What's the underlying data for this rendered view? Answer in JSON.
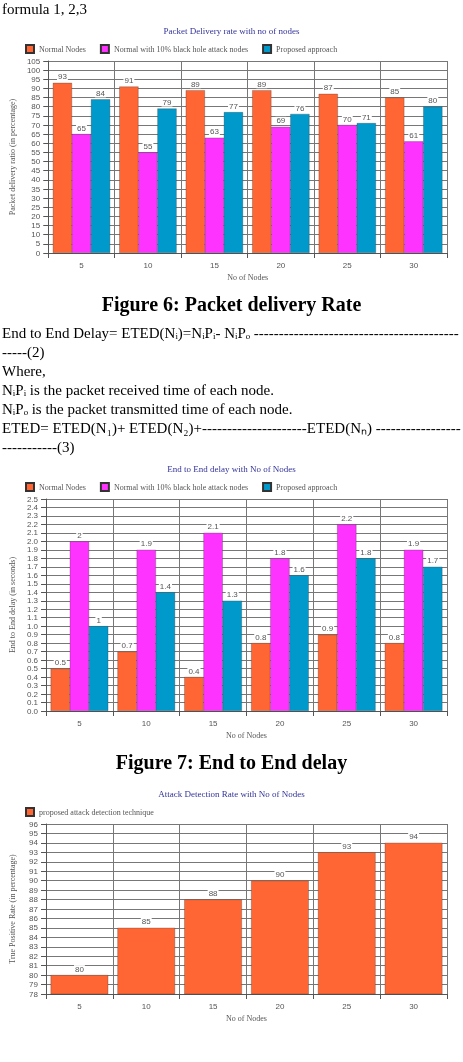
{
  "chart_data": [
    {
      "type": "bar",
      "title": "Packet Delivery rate with no of nodes",
      "xlabel": "No of Nodes",
      "ylabel": "Packet delivery ratio (in percentage)",
      "categories": [
        "5",
        "10",
        "15",
        "20",
        "25",
        "30"
      ],
      "series": [
        {
          "name": "Normal Nodes",
          "color": "#ff6633",
          "values": [
            93,
            91,
            89,
            89,
            87,
            85
          ]
        },
        {
          "name": "Normal with 10% black hole attack nodes",
          "color": "#ff33ff",
          "values": [
            65,
            55,
            63,
            69,
            70,
            61
          ]
        },
        {
          "name": "Proposed approach",
          "color": "#0099cc",
          "values": [
            84,
            79,
            77,
            76,
            71,
            80
          ]
        }
      ],
      "ylim": [
        0,
        105
      ],
      "yticks": [
        0,
        5,
        10,
        15,
        20,
        25,
        30,
        35,
        40,
        45,
        50,
        55,
        60,
        65,
        70,
        75,
        80,
        85,
        90,
        95,
        100,
        105
      ],
      "grid": true,
      "legend": "top left",
      "data_labels": true,
      "annotations": [
        "formula 1, 2,3",
        "Figure 6: Packet delivery Rate",
        "End to End Delay= ETED(Nᵢ)=NᵢPᵢ- NᵢPₒ ----------------------------------------------(2)",
        "Where,",
        "NᵢPᵢ is the packet received time of each node.",
        "NᵢPₒ is the packet transmitted time of each node.",
        "ETED= ETED(N₁)+ ETED(N₂)+---------------------ETED(Nₙ) ----------------------------(3)"
      ]
    },
    {
      "type": "bar",
      "title": "End to End delay with No of Nodes",
      "xlabel": "No of Nodes",
      "ylabel": "End to End delay (in seconds)",
      "categories": [
        "5",
        "10",
        "15",
        "20",
        "25",
        "30"
      ],
      "series": [
        {
          "name": "Normal Nodes",
          "color": "#ff6633",
          "values": [
            0.5,
            0.7,
            0.4,
            0.8,
            0.9,
            0.8
          ]
        },
        {
          "name": "Normal with 10% black hole attack nodes",
          "color": "#ff33ff",
          "values": [
            2,
            1.9,
            2.1,
            1.8,
            2.2,
            1.9
          ]
        },
        {
          "name": "Proposed approach",
          "color": "#0099cc",
          "values": [
            1,
            1.4,
            1.3,
            1.6,
            1.8,
            1.7
          ]
        }
      ],
      "ylim": [
        0,
        2.5
      ],
      "yticks": [
        {
          "value": 0,
          "label": "0.0"
        },
        0.1,
        0.2,
        0.3,
        0.4,
        0.5,
        0.6,
        0.7,
        0.8,
        0.9,
        {
          "value": 1,
          "label": "1.0"
        },
        1.1,
        1.2,
        1.3,
        1.4,
        1.5,
        1.6,
        1.7,
        1.8,
        1.9,
        {
          "value": 2,
          "label": "2.0"
        },
        2.1,
        2.2,
        2.3,
        2.4,
        2.5
      ],
      "grid": true,
      "legend": "top left",
      "data_labels": true,
      "annotations": [
        "Figure 7: End to End delay"
      ]
    },
    {
      "type": "bar",
      "title": "Attack Detection Rate with No of Nodes",
      "xlabel": "No of Nodes",
      "ylabel": "True Positive Rate (in percentage)",
      "categories": [
        "5",
        "10",
        "15",
        "20",
        "25",
        "30"
      ],
      "series": [
        {
          "name": "proposed attack detection technique",
          "color": "#ff6633",
          "values": [
            80,
            85,
            88,
            90,
            93,
            94
          ]
        }
      ],
      "ylim": [
        78,
        96
      ],
      "yticks": [
        78,
        79,
        80,
        81,
        82,
        83,
        84,
        85,
        86,
        87,
        88,
        89,
        90,
        91,
        92,
        93,
        94,
        95,
        96
      ],
      "grid": true,
      "legend": "top left",
      "data_labels": true
    }
  ]
}
